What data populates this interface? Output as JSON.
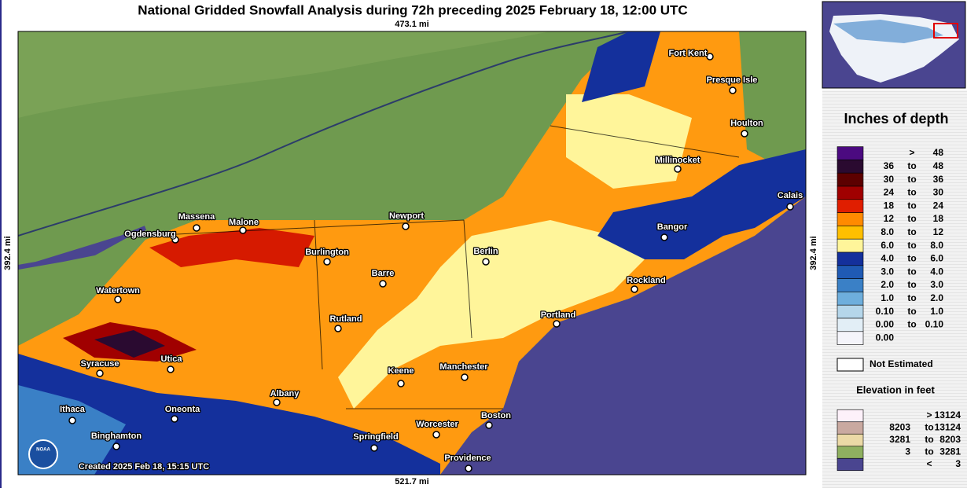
{
  "title": "National Gridded Snowfall Analysis during 72h preceding 2025 February 18, 12:00 UTC",
  "scale": {
    "top": "473.1 mi",
    "bottom": "521.7 mi",
    "left": "392.4 mi",
    "right": "392.4 mi"
  },
  "credit": "Created 2025 Feb 18, 15:15 UTC",
  "logo": "NOAA",
  "cities": [
    "Fort Kent",
    "Presque Isle",
    "Houlton",
    "Millinocket",
    "Calais",
    "Bangor",
    "Rockland",
    "Portland",
    "Berlin",
    "Newport",
    "Burlington",
    "Barre",
    "Rutland",
    "Malone",
    "Massena",
    "Ogdensburg",
    "Watertown",
    "Syracuse",
    "Utica",
    "Albany",
    "Oneonta",
    "Ithaca",
    "Binghamton",
    "Keene",
    "Manchester",
    "Boston",
    "Worcester",
    "Springfield",
    "Providence"
  ],
  "legend": {
    "title": "Inches of depth",
    "rows": [
      {
        "sep": ">",
        "high": "48",
        "color": "#4b0a80"
      },
      {
        "low": "36",
        "sep": "to",
        "high": "48",
        "color": "#2a0a30"
      },
      {
        "low": "30",
        "sep": "to",
        "high": "36",
        "color": "#5c0000"
      },
      {
        "low": "24",
        "sep": "to",
        "high": "30",
        "color": "#a00000"
      },
      {
        "low": "18",
        "sep": "to",
        "high": "24",
        "color": "#e01e00"
      },
      {
        "low": "12",
        "sep": "to",
        "high": "18",
        "color": "#ff8a00"
      },
      {
        "low": "8.0",
        "sep": "to",
        "high": "12",
        "color": "#ffbf00"
      },
      {
        "low": "6.0",
        "sep": "to",
        "high": "8.0",
        "color": "#fff59a"
      },
      {
        "low": "4.0",
        "sep": "to",
        "high": "6.0",
        "color": "#14309c"
      },
      {
        "low": "3.0",
        "sep": "to",
        "high": "4.0",
        "color": "#1f5ab4"
      },
      {
        "low": "2.0",
        "sep": "to",
        "high": "3.0",
        "color": "#3a80c6"
      },
      {
        "low": "1.0",
        "sep": "to",
        "high": "2.0",
        "color": "#6eaedc"
      },
      {
        "low": "0.10",
        "sep": "to",
        "high": "1.0",
        "color": "#b5d6ea"
      },
      {
        "low": "0.00",
        "sep": "to",
        "high": "0.10",
        "color": "#e2eef6"
      },
      {
        "low": "0.00",
        "color": "#f4f4fa"
      }
    ],
    "not_estimated": "Not Estimated"
  },
  "elevation": {
    "title": "Elevation in feet",
    "rows": [
      {
        "sep": ">",
        "high": "13124",
        "color": "#fdf1fa"
      },
      {
        "low": "8203",
        "sep": "to",
        "high": "13124",
        "color": "#c9a9a0"
      },
      {
        "low": "3281",
        "sep": "to",
        "high": "8203",
        "color": "#ebd9a6"
      },
      {
        "low": "3",
        "sep": "to",
        "high": "3281",
        "color": "#8fb060"
      },
      {
        "sep": "<",
        "high": "3",
        "color": "#4a4590"
      }
    ]
  }
}
